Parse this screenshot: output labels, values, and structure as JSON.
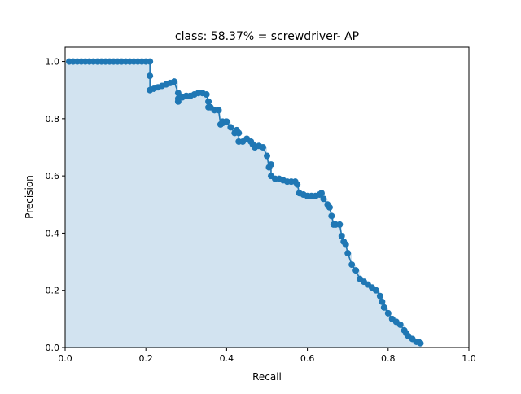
{
  "chart_data": {
    "type": "area",
    "title": "class: 58.37% = screwdriver- AP",
    "xlabel": "Recall",
    "ylabel": "Precision",
    "xlim": [
      0,
      1
    ],
    "ylim": [
      0,
      1.05
    ],
    "xticks": [
      0.0,
      0.2,
      0.4,
      0.6,
      0.8,
      1.0
    ],
    "xtick_labels": [
      "0.0",
      "0.2",
      "0.4",
      "0.6",
      "0.8",
      "1.0"
    ],
    "yticks": [
      0.0,
      0.2,
      0.4,
      0.6,
      0.8,
      1.0
    ],
    "ytick_labels": [
      "0.0",
      "0.2",
      "0.4",
      "0.6",
      "0.8",
      "1.0"
    ],
    "grid": false,
    "colors": {
      "line": "#1f77b4",
      "fill": "#d2e3f0",
      "interp": "#d8879a"
    },
    "series": [
      {
        "x": [
          0.01,
          0.02,
          0.03,
          0.04,
          0.05,
          0.06,
          0.07,
          0.08,
          0.09,
          0.1,
          0.11,
          0.12,
          0.13,
          0.14,
          0.15,
          0.16,
          0.17,
          0.18,
          0.19,
          0.2,
          0.21,
          0.21,
          0.21,
          0.22,
          0.23,
          0.24,
          0.25,
          0.26,
          0.27,
          0.28,
          0.28,
          0.28,
          0.29,
          0.3,
          0.31,
          0.32,
          0.33,
          0.34,
          0.35,
          0.355,
          0.355,
          0.36,
          0.37,
          0.38,
          0.385,
          0.39,
          0.39,
          0.4,
          0.41,
          0.42,
          0.425,
          0.43,
          0.43,
          0.44,
          0.45,
          0.46,
          0.465,
          0.47,
          0.48,
          0.49,
          0.5,
          0.505,
          0.51,
          0.51,
          0.52,
          0.53,
          0.54,
          0.55,
          0.56,
          0.57,
          0.575,
          0.58,
          0.59,
          0.6,
          0.61,
          0.62,
          0.63,
          0.635,
          0.64,
          0.65,
          0.655,
          0.66,
          0.665,
          0.67,
          0.68,
          0.685,
          0.69,
          0.695,
          0.7,
          0.71,
          0.72,
          0.73,
          0.74,
          0.75,
          0.76,
          0.77,
          0.78,
          0.785,
          0.79,
          0.8,
          0.81,
          0.82,
          0.83,
          0.84,
          0.845,
          0.85,
          0.86,
          0.87,
          0.875,
          0.88
        ],
        "y": [
          1.0,
          1.0,
          1.0,
          1.0,
          1.0,
          1.0,
          1.0,
          1.0,
          1.0,
          1.0,
          1.0,
          1.0,
          1.0,
          1.0,
          1.0,
          1.0,
          1.0,
          1.0,
          1.0,
          1.0,
          1.0,
          0.95,
          0.9,
          0.905,
          0.91,
          0.915,
          0.92,
          0.925,
          0.93,
          0.89,
          0.86,
          0.87,
          0.875,
          0.88,
          0.88,
          0.885,
          0.89,
          0.89,
          0.885,
          0.86,
          0.84,
          0.84,
          0.83,
          0.83,
          0.78,
          0.785,
          0.79,
          0.79,
          0.77,
          0.75,
          0.76,
          0.75,
          0.72,
          0.72,
          0.73,
          0.72,
          0.71,
          0.7,
          0.705,
          0.7,
          0.67,
          0.63,
          0.64,
          0.6,
          0.59,
          0.59,
          0.585,
          0.58,
          0.58,
          0.58,
          0.57,
          0.54,
          0.535,
          0.53,
          0.53,
          0.53,
          0.535,
          0.54,
          0.52,
          0.5,
          0.49,
          0.46,
          0.43,
          0.43,
          0.43,
          0.39,
          0.37,
          0.36,
          0.33,
          0.29,
          0.27,
          0.24,
          0.23,
          0.22,
          0.21,
          0.2,
          0.18,
          0.16,
          0.14,
          0.12,
          0.1,
          0.09,
          0.08,
          0.06,
          0.05,
          0.04,
          0.03,
          0.02,
          0.02,
          0.015
        ]
      }
    ]
  }
}
